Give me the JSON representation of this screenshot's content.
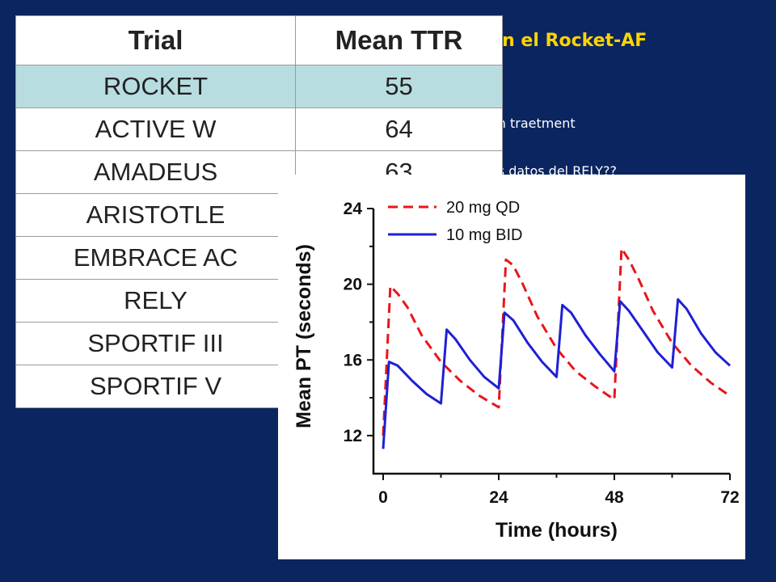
{
  "slide": {
    "title_fragment": "on el Rocket-AF",
    "bullet_1_fragment": "on traetment",
    "bullet_2_fragment": "os datos del RELY??"
  },
  "table": {
    "headers": [
      "Trial",
      "Mean TTR"
    ],
    "rows": [
      {
        "trial": "ROCKET",
        "ttr": "55",
        "highlight": true
      },
      {
        "trial": "ACTIVE W",
        "ttr": "64"
      },
      {
        "trial": "AMADEUS",
        "ttr": "63"
      },
      {
        "trial": "ARISTOTLE",
        "ttr": ""
      },
      {
        "trial": "EMBRACE AC",
        "ttr": ""
      },
      {
        "trial": "RELY",
        "ttr": ""
      },
      {
        "trial": "SPORTIF III",
        "ttr": ""
      },
      {
        "trial": "SPORTIF V",
        "ttr": ""
      }
    ],
    "highlight_color": "#b8dde1"
  },
  "chart_data": {
    "type": "line",
    "title": "",
    "xlabel": "Time (hours)",
    "ylabel": "Mean PT (seconds)",
    "xlim": [
      0,
      72
    ],
    "ylim": [
      10.5,
      24
    ],
    "xticks": [
      0,
      24,
      48,
      72
    ],
    "yticks": [
      12,
      16,
      20,
      24
    ],
    "grid": false,
    "legend_position": "top-left",
    "series": [
      {
        "name": "20 mg QD",
        "color": "#e8161a",
        "dash": true,
        "x": [
          0,
          1.5,
          3,
          5,
          8,
          12,
          16,
          20,
          24,
          25.5,
          27,
          29,
          32,
          36,
          40,
          44,
          48,
          49.5,
          51,
          53,
          56,
          60,
          64,
          68,
          72
        ],
        "y": [
          12.0,
          19.9,
          19.5,
          18.8,
          17.3,
          15.9,
          14.9,
          14.1,
          13.5,
          21.3,
          21.0,
          20.0,
          18.3,
          16.6,
          15.4,
          14.6,
          13.9,
          21.9,
          21.3,
          20.3,
          18.6,
          16.9,
          15.7,
          14.8,
          14.1
        ]
      },
      {
        "name": "10 mg BID",
        "color": "#1f20d4",
        "dash": false,
        "x": [
          0,
          1.2,
          3,
          6,
          9,
          12,
          13.2,
          15,
          18,
          21,
          24,
          25.2,
          27,
          30,
          33,
          36,
          37.2,
          39,
          42,
          45,
          48,
          49.2,
          51,
          54,
          57,
          60,
          61.2,
          63,
          66,
          69,
          72
        ],
        "y": [
          11.3,
          15.9,
          15.7,
          14.9,
          14.2,
          13.7,
          17.6,
          17.1,
          16.0,
          15.1,
          14.5,
          18.5,
          18.1,
          16.9,
          15.9,
          15.1,
          18.9,
          18.5,
          17.3,
          16.3,
          15.4,
          19.1,
          18.6,
          17.5,
          16.4,
          15.6,
          19.2,
          18.7,
          17.4,
          16.4,
          15.7
        ]
      }
    ]
  }
}
